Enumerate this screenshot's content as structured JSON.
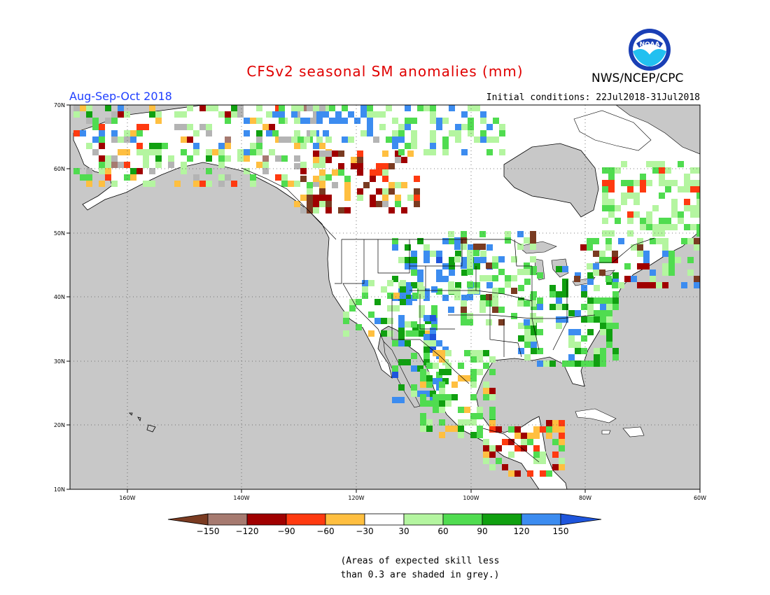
{
  "title": "CFSv2 seasonal SM anomalies (mm)",
  "period": "Aug-Sep-Oct 2018",
  "initial_conditions": "Initial conditions: 22Jul2018-31Jul2018",
  "agency": "NWS/NCEP/CPC",
  "logo_text": "NOAA",
  "lat_labels": [
    "70N",
    "60N",
    "50N",
    "40N",
    "30N",
    "20N",
    "10N"
  ],
  "lon_labels": [
    "160W",
    "140W",
    "120W",
    "100W",
    "80W",
    "60W"
  ],
  "colorbar": {
    "labels": [
      "−150",
      "−120",
      "−90",
      "−60",
      "−30",
      "30",
      "60",
      "90",
      "120",
      "150"
    ],
    "colors": [
      "#7a3b21",
      "#a67a70",
      "#a00000",
      "#ff3a10",
      "#ffbf40",
      "#ffffff",
      "#b4f5a0",
      "#50dc50",
      "#10a010",
      "#3c8cf0",
      "#1e55dc"
    ]
  },
  "footnote": [
    "(Areas of expected skill less",
    "than 0.3 are shaded in grey.)"
  ],
  "colors": {
    "land_grey": "#c8c8c8",
    "title_red": "#e00000",
    "period_blue": "#1f3fff"
  }
}
